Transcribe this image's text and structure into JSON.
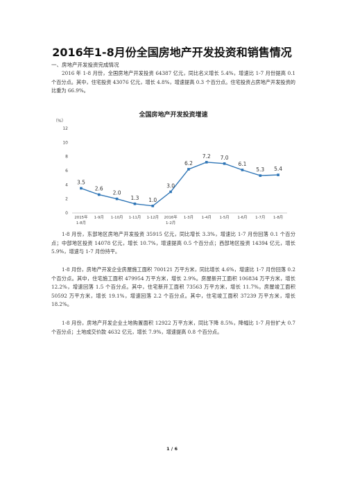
{
  "document": {
    "title": "2016年1-8月份全国房地产开发投资和销售情况",
    "section_heading": "一、房地产开发投资完成情况",
    "paragraphs": [
      "2016 年 1-8 月份，全国房地产开发投资 64387 亿元，同比名义增长 5.4%，增速比 1-7 月份提高 0.1 个百分点。其中，住宅投资 43076 亿元，增长 4.8%，增速提高 0.3 个百分点。住宅投资占房地产开发投资的比重为 66.9%。",
      "1-8 月份，东部地区房地产开发投资 35915 亿元，同比增长 3.3%，增速比 1-7 月份回落 0.1 个百分点；中部地区投资 14078 亿元，增长 10.7%，增速提高 0.5 个百分点；西部地区投资 14394 亿元，增长 5.9%，增速与 1-7 月份持平。",
      "1-8 月份，房地产开发企业房屋施工面积 700121 万平方米，同比增长 4.6%，增速比 1-7 月份回落 0.2 个百分点。其中，住宅施工面积 479954 万平方米，增长 2.9%。房屋新开工面积 106834 万平方米，增长 12.2%，增速回落 1.5 个百分点。其中，住宅新开工面积 73563 万平方米，增长 11.7%。房屋竣工面积 50592 万平方米，增长 19.1%，增速回落 2.2 个百分点。其中，住宅竣工面积 37239 万平方米，增长 18.2%。",
      "1-8 月份，房地产开发企业土地购置面积 12922 万平方米，同比下降 8.5%，降幅比 1-7 月份扩大 0.7 个百分点；土地成交价款 4632 亿元，增长 7.9%，增速提高 0.8 个百分点。"
    ],
    "page_number": "1 / 6"
  },
  "chart_data": {
    "type": "line",
    "title": "全国房地产开发投资增速",
    "ylabel": "（%）",
    "xlabel": "",
    "categories": [
      [
        "2015年",
        "1-8月"
      ],
      [
        "1-9月"
      ],
      [
        "1-10月"
      ],
      [
        "1-11月"
      ],
      [
        "1-12月"
      ],
      [
        "2016年",
        "1-2月"
      ],
      [
        "1-3月"
      ],
      [
        "1-4月"
      ],
      [
        "1-5月"
      ],
      [
        "1-6月"
      ],
      [
        "1-7月"
      ],
      [
        "1-8月"
      ]
    ],
    "values": [
      3.5,
      2.6,
      2.0,
      1.3,
      1.0,
      3.0,
      6.2,
      7.2,
      7.0,
      6.1,
      5.3,
      5.4
    ],
    "data_labels": [
      "3.5",
      "2.6",
      "2.0",
      "1.3",
      "1.0",
      "3.0",
      "6.2",
      "7.2",
      "7.0",
      "6.1",
      "5.3",
      "5.4"
    ],
    "ylim": [
      0,
      12
    ],
    "yticks": [
      "0",
      "2",
      "4",
      "6",
      "8",
      "10",
      "12"
    ],
    "grid": false,
    "line_color": "#2e75b6"
  }
}
